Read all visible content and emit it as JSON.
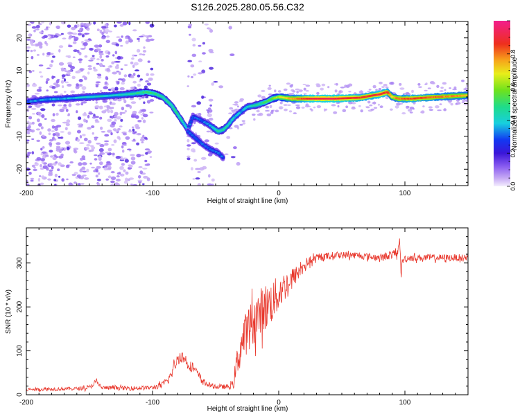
{
  "title": "S126.2025.280.05.56.C32",
  "top_plot": {
    "xlabel": "Height of straight line (km)",
    "ylabel": "Frequency (Hz)",
    "colorbar_label": "Normalized spectral amplitude"
  },
  "bottom_plot": {
    "xlabel": "Height of straight line (km)",
    "ylabel": "SNR (10 * v/v)"
  },
  "colors": {
    "snr_line": "#e8372c",
    "ridge_low": "#3a1fd6",
    "ridge_mid": "#19d6ad",
    "ridge_high": "#e23a1e",
    "noise": "#8a5cf0"
  },
  "chart_data": [
    {
      "type": "heatmap",
      "title": "S126.2025.280.05.56.C32",
      "xlabel": "Height of straight line (km)",
      "ylabel": "Frequency (Hz)",
      "xlim": [
        -200,
        150
      ],
      "ylim": [
        -25,
        25
      ],
      "xticks": [
        -200,
        -100,
        0,
        100
      ],
      "yticks": [
        -20,
        -10,
        0,
        10,
        20
      ],
      "colorbar": {
        "label": "Normalized spectral amplitude",
        "range": [
          0,
          1
        ],
        "ticks": [
          0.0,
          0.2,
          0.4,
          0.6,
          0.8
        ]
      },
      "ridge_trace": {
        "x": [
          -200,
          -185,
          -170,
          -150,
          -130,
          -115,
          -105,
          -98,
          -92,
          -85,
          -78,
          -72,
          -68,
          -62,
          -55,
          -48,
          -44,
          -40,
          -36,
          -30,
          -25,
          -18,
          -10,
          -5,
          0,
          10,
          25,
          45,
          65,
          75,
          80,
          86,
          90,
          95,
          105,
          125,
          150
        ],
        "y": [
          0.5,
          1.2,
          1.5,
          2.0,
          2.5,
          3.0,
          3.5,
          3.0,
          2.0,
          -0.5,
          -4.5,
          -8.0,
          -4.0,
          -5.0,
          -6.5,
          -8.5,
          -8.0,
          -6.5,
          -4.5,
          -2.5,
          -1.0,
          -0.5,
          0.5,
          1.5,
          2.0,
          1.5,
          1.5,
          1.5,
          1.8,
          2.5,
          2.8,
          3.5,
          2.0,
          1.5,
          1.5,
          2.0,
          2.5
        ],
        "amplitude": [
          0.3,
          0.35,
          0.35,
          0.4,
          0.4,
          0.45,
          0.5,
          0.5,
          0.45,
          0.45,
          0.45,
          0.35,
          0.3,
          0.3,
          0.35,
          0.45,
          0.45,
          0.4,
          0.4,
          0.35,
          0.4,
          0.45,
          0.5,
          0.55,
          0.65,
          0.75,
          0.9,
          0.92,
          0.85,
          0.85,
          0.9,
          0.85,
          0.7,
          0.8,
          0.85,
          0.8,
          0.75
        ]
      },
      "secondary_trace": {
        "x": [
          -72,
          -66,
          -60,
          -54,
          -48,
          -44
        ],
        "y": [
          -8.5,
          -10.5,
          -12.5,
          -14.0,
          -15.0,
          -16.5
        ]
      }
    },
    {
      "type": "line",
      "xlabel": "Height of straight line (km)",
      "ylabel": "SNR (10 * v/v)",
      "xlim": [
        -200,
        150
      ],
      "ylim": [
        0,
        380
      ],
      "xticks": [
        -200,
        -100,
        0,
        100
      ],
      "yticks": [
        0,
        100,
        200,
        300
      ],
      "series": [
        {
          "name": "SNR",
          "x": [
            -200,
            -180,
            -160,
            -150,
            -145,
            -140,
            -120,
            -100,
            -92,
            -86,
            -82,
            -78,
            -74,
            -70,
            -66,
            -60,
            -55,
            -50,
            -45,
            -40,
            -36,
            -34,
            -30,
            -26,
            -22,
            -18,
            -14,
            -10,
            -6,
            -2,
            0,
            4,
            10,
            16,
            22,
            28,
            35,
            45,
            60,
            80,
            94,
            96,
            97,
            98,
            100,
            104,
            120,
            150
          ],
          "y": [
            12,
            13,
            14,
            16,
            30,
            16,
            15,
            16,
            22,
            40,
            70,
            90,
            80,
            65,
            55,
            30,
            22,
            18,
            18,
            18,
            22,
            60,
            110,
            140,
            160,
            175,
            190,
            200,
            210,
            222,
            230,
            245,
            262,
            280,
            300,
            308,
            314,
            318,
            318,
            312,
            322,
            350,
            270,
            305,
            310,
            312,
            312,
            312
          ],
          "noise": [
            4,
            4,
            4,
            5,
            6,
            5,
            5,
            5,
            8,
            12,
            14,
            15,
            15,
            12,
            10,
            8,
            6,
            5,
            5,
            6,
            10,
            30,
            45,
            50,
            55,
            55,
            55,
            55,
            50,
            45,
            40,
            35,
            25,
            18,
            12,
            10,
            9,
            8,
            8,
            8,
            10,
            12,
            10,
            10,
            9,
            8,
            8,
            8
          ]
        }
      ]
    }
  ]
}
